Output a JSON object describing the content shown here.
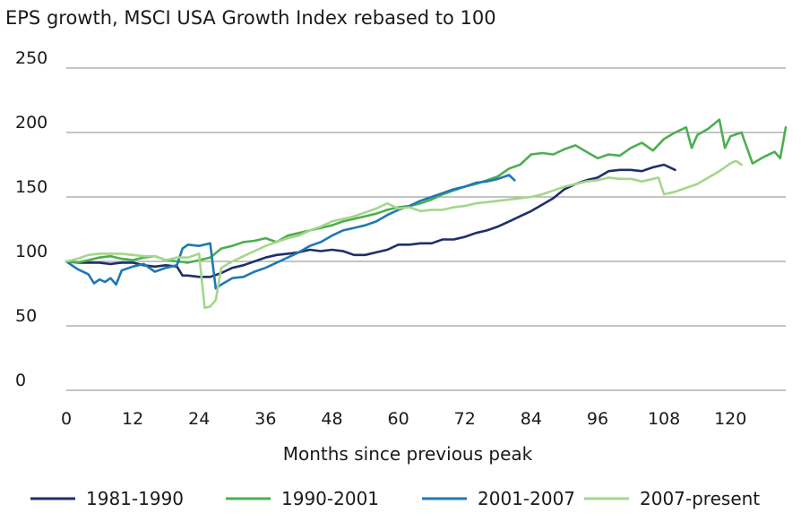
{
  "chart_data": {
    "type": "line",
    "title": "EPS growth, MSCI USA Growth Index rebased to 100",
    "xlabel": "Months since previous peak",
    "ylabel": "",
    "xlim": [
      0,
      130
    ],
    "ylim": [
      0,
      250
    ],
    "xticks": [
      0,
      12,
      24,
      36,
      48,
      60,
      72,
      84,
      96,
      108,
      120
    ],
    "yticks": [
      0,
      50,
      100,
      150,
      200,
      250
    ],
    "grid": "horizontal",
    "legend_position": "bottom",
    "series": [
      {
        "name": "1981-1990",
        "color": "#1f2f6b",
        "points": [
          [
            0,
            100
          ],
          [
            2,
            99
          ],
          [
            4,
            99
          ],
          [
            6,
            99
          ],
          [
            8,
            98
          ],
          [
            10,
            99
          ],
          [
            12,
            99
          ],
          [
            14,
            97
          ],
          [
            16,
            96
          ],
          [
            18,
            97
          ],
          [
            20,
            96
          ],
          [
            21,
            89
          ],
          [
            22,
            89
          ],
          [
            24,
            88
          ],
          [
            26,
            88
          ],
          [
            28,
            91
          ],
          [
            30,
            95
          ],
          [
            32,
            97
          ],
          [
            34,
            100
          ],
          [
            36,
            103
          ],
          [
            38,
            105
          ],
          [
            40,
            106
          ],
          [
            42,
            107
          ],
          [
            44,
            109
          ],
          [
            46,
            108
          ],
          [
            48,
            109
          ],
          [
            50,
            108
          ],
          [
            52,
            105
          ],
          [
            54,
            105
          ],
          [
            56,
            107
          ],
          [
            58,
            109
          ],
          [
            60,
            113
          ],
          [
            62,
            113
          ],
          [
            64,
            114
          ],
          [
            66,
            114
          ],
          [
            68,
            117
          ],
          [
            70,
            117
          ],
          [
            72,
            119
          ],
          [
            74,
            122
          ],
          [
            76,
            124
          ],
          [
            78,
            127
          ],
          [
            80,
            131
          ],
          [
            82,
            135
          ],
          [
            84,
            139
          ],
          [
            86,
            144
          ],
          [
            88,
            149
          ],
          [
            90,
            156
          ],
          [
            92,
            160
          ],
          [
            94,
            163
          ],
          [
            96,
            165
          ],
          [
            98,
            170
          ],
          [
            100,
            171
          ],
          [
            102,
            171
          ],
          [
            104,
            170
          ],
          [
            106,
            173
          ],
          [
            108,
            175
          ],
          [
            110,
            171
          ]
        ]
      },
      {
        "name": "1990-2001",
        "color": "#4caf50",
        "points": [
          [
            0,
            100
          ],
          [
            2,
            99
          ],
          [
            4,
            101
          ],
          [
            6,
            103
          ],
          [
            8,
            104
          ],
          [
            10,
            102
          ],
          [
            12,
            101
          ],
          [
            14,
            103
          ],
          [
            16,
            104
          ],
          [
            18,
            101
          ],
          [
            20,
            100
          ],
          [
            22,
            99
          ],
          [
            24,
            101
          ],
          [
            26,
            103
          ],
          [
            28,
            110
          ],
          [
            30,
            112
          ],
          [
            32,
            115
          ],
          [
            34,
            116
          ],
          [
            36,
            118
          ],
          [
            38,
            115
          ],
          [
            40,
            120
          ],
          [
            42,
            122
          ],
          [
            44,
            124
          ],
          [
            46,
            126
          ],
          [
            48,
            128
          ],
          [
            50,
            131
          ],
          [
            52,
            133
          ],
          [
            54,
            135
          ],
          [
            56,
            137
          ],
          [
            58,
            140
          ],
          [
            60,
            142
          ],
          [
            62,
            143
          ],
          [
            64,
            145
          ],
          [
            66,
            148
          ],
          [
            68,
            152
          ],
          [
            70,
            155
          ],
          [
            72,
            158
          ],
          [
            74,
            160
          ],
          [
            76,
            163
          ],
          [
            78,
            166
          ],
          [
            80,
            172
          ],
          [
            82,
            175
          ],
          [
            84,
            183
          ],
          [
            86,
            184
          ],
          [
            88,
            183
          ],
          [
            90,
            187
          ],
          [
            92,
            190
          ],
          [
            94,
            185
          ],
          [
            96,
            180
          ],
          [
            98,
            183
          ],
          [
            100,
            182
          ],
          [
            102,
            188
          ],
          [
            104,
            192
          ],
          [
            106,
            186
          ],
          [
            108,
            195
          ],
          [
            110,
            200
          ],
          [
            112,
            204
          ],
          [
            113,
            188
          ],
          [
            114,
            198
          ],
          [
            116,
            203
          ],
          [
            118,
            210
          ],
          [
            119,
            188
          ],
          [
            120,
            197
          ],
          [
            122,
            200
          ],
          [
            124,
            176
          ],
          [
            126,
            181
          ],
          [
            128,
            185
          ],
          [
            129,
            180
          ],
          [
            130,
            204
          ]
        ]
      },
      {
        "name": "2001-2007",
        "color": "#1f78b4",
        "points": [
          [
            0,
            100
          ],
          [
            2,
            94
          ],
          [
            4,
            90
          ],
          [
            5,
            83
          ],
          [
            6,
            86
          ],
          [
            7,
            84
          ],
          [
            8,
            87
          ],
          [
            9,
            82
          ],
          [
            10,
            93
          ],
          [
            12,
            96
          ],
          [
            14,
            98
          ],
          [
            16,
            92
          ],
          [
            18,
            95
          ],
          [
            20,
            97
          ],
          [
            21,
            110
          ],
          [
            22,
            113
          ],
          [
            24,
            112
          ],
          [
            26,
            114
          ],
          [
            27,
            79
          ],
          [
            28,
            82
          ],
          [
            30,
            87
          ],
          [
            32,
            88
          ],
          [
            34,
            92
          ],
          [
            36,
            95
          ],
          [
            38,
            99
          ],
          [
            40,
            103
          ],
          [
            42,
            107
          ],
          [
            44,
            112
          ],
          [
            46,
            115
          ],
          [
            48,
            120
          ],
          [
            50,
            124
          ],
          [
            52,
            126
          ],
          [
            54,
            128
          ],
          [
            56,
            131
          ],
          [
            58,
            136
          ],
          [
            60,
            140
          ],
          [
            62,
            143
          ],
          [
            64,
            147
          ],
          [
            66,
            150
          ],
          [
            68,
            153
          ],
          [
            70,
            156
          ],
          [
            72,
            158
          ],
          [
            74,
            161
          ],
          [
            76,
            162
          ],
          [
            78,
            164
          ],
          [
            80,
            167
          ],
          [
            81,
            163
          ]
        ]
      },
      {
        "name": "2007-present",
        "color": "#a5d68a",
        "points": [
          [
            0,
            100
          ],
          [
            2,
            102
          ],
          [
            4,
            105
          ],
          [
            6,
            106
          ],
          [
            8,
            106
          ],
          [
            10,
            106
          ],
          [
            12,
            105
          ],
          [
            14,
            104
          ],
          [
            16,
            104
          ],
          [
            18,
            101
          ],
          [
            20,
            103
          ],
          [
            22,
            103
          ],
          [
            24,
            106
          ],
          [
            25,
            64
          ],
          [
            26,
            65
          ],
          [
            27,
            70
          ],
          [
            28,
            95
          ],
          [
            30,
            100
          ],
          [
            32,
            104
          ],
          [
            34,
            108
          ],
          [
            36,
            112
          ],
          [
            38,
            115
          ],
          [
            40,
            118
          ],
          [
            42,
            120
          ],
          [
            44,
            124
          ],
          [
            46,
            127
          ],
          [
            48,
            131
          ],
          [
            50,
            133
          ],
          [
            52,
            135
          ],
          [
            54,
            138
          ],
          [
            56,
            141
          ],
          [
            58,
            145
          ],
          [
            60,
            141
          ],
          [
            62,
            142
          ],
          [
            64,
            139
          ],
          [
            66,
            140
          ],
          [
            68,
            140
          ],
          [
            70,
            142
          ],
          [
            72,
            143
          ],
          [
            74,
            145
          ],
          [
            76,
            146
          ],
          [
            78,
            147
          ],
          [
            80,
            148
          ],
          [
            82,
            149
          ],
          [
            84,
            150
          ],
          [
            86,
            152
          ],
          [
            88,
            155
          ],
          [
            90,
            158
          ],
          [
            92,
            160
          ],
          [
            94,
            162
          ],
          [
            96,
            163
          ],
          [
            98,
            165
          ],
          [
            100,
            164
          ],
          [
            102,
            164
          ],
          [
            104,
            162
          ],
          [
            106,
            164
          ],
          [
            107,
            165
          ],
          [
            108,
            152
          ],
          [
            110,
            154
          ],
          [
            112,
            157
          ],
          [
            114,
            160
          ],
          [
            116,
            165
          ],
          [
            118,
            170
          ],
          [
            120,
            176
          ],
          [
            121,
            178
          ],
          [
            122,
            175
          ]
        ]
      }
    ]
  }
}
